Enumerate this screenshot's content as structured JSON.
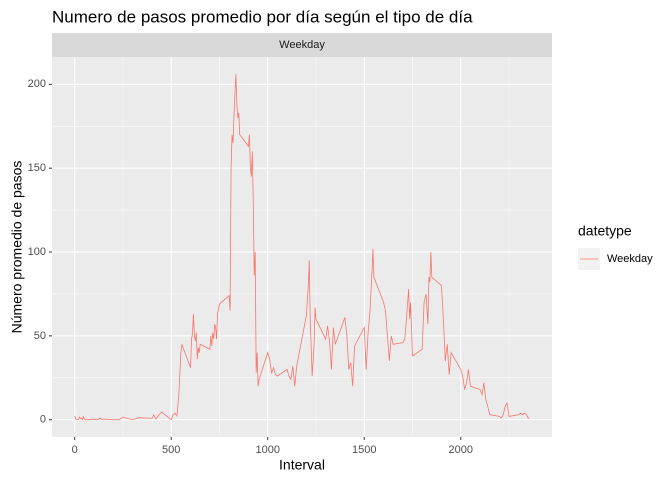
{
  "chart_data": {
    "type": "line",
    "title": "Numero de pasos promedio por día según el tipo de día",
    "facet_label": "Weekday",
    "xlabel": "Interval",
    "ylabel": "Número promedio de pasos",
    "legend_title": "datetype",
    "legend_position": "right",
    "grid": true,
    "x": [
      0,
      5,
      10,
      15,
      20,
      25,
      30,
      35,
      40,
      45,
      50,
      55,
      100,
      105,
      110,
      115,
      120,
      130,
      140,
      150,
      200,
      220,
      230,
      250,
      300,
      330,
      400,
      410,
      420,
      430,
      440,
      450,
      500,
      510,
      520,
      530,
      540,
      550,
      555,
      600,
      605,
      610,
      615,
      620,
      625,
      630,
      635,
      640,
      645,
      650,
      700,
      705,
      710,
      715,
      720,
      725,
      730,
      735,
      740,
      745,
      750,
      800,
      805,
      810,
      815,
      820,
      825,
      830,
      835,
      840,
      845,
      850,
      855,
      900,
      905,
      910,
      915,
      920,
      925,
      930,
      935,
      940,
      945,
      950,
      955,
      1000,
      1010,
      1020,
      1030,
      1040,
      1050,
      1100,
      1110,
      1120,
      1130,
      1140,
      1150,
      1200,
      1210,
      1215,
      1220,
      1230,
      1240,
      1245,
      1250,
      1300,
      1310,
      1320,
      1330,
      1340,
      1350,
      1400,
      1410,
      1420,
      1430,
      1440,
      1450,
      1500,
      1510,
      1520,
      1530,
      1540,
      1545,
      1550,
      1600,
      1610,
      1620,
      1630,
      1640,
      1650,
      1700,
      1710,
      1720,
      1730,
      1735,
      1740,
      1750,
      1800,
      1810,
      1820,
      1830,
      1835,
      1840,
      1845,
      1850,
      1900,
      1910,
      1920,
      1930,
      1940,
      1950,
      2000,
      2010,
      2020,
      2030,
      2040,
      2050,
      2100,
      2110,
      2120,
      2130,
      2140,
      2150,
      2200,
      2210,
      2220,
      2230,
      2240,
      2250,
      2300,
      2310,
      2320,
      2330,
      2340,
      2350,
      2355
    ],
    "series": [
      {
        "name": "Weekday",
        "color": "#F8766D",
        "values": [
          2.3,
          0.4,
          0.2,
          0.2,
          0.1,
          1.6,
          0.6,
          1,
          0,
          1.8,
          0.4,
          0,
          0.4,
          0,
          0.2,
          0.4,
          0,
          1.1,
          0.2,
          0.4,
          0,
          0,
          0,
          1.5,
          0,
          1.2,
          0.8,
          2.9,
          0.4,
          1.8,
          3.4,
          4.6,
          0,
          3,
          3.8,
          2.3,
          16,
          40,
          45,
          31,
          48,
          51,
          63,
          50,
          47,
          52,
          36,
          43,
          40,
          45,
          42,
          50,
          44,
          52,
          48,
          57,
          55,
          48,
          63,
          66,
          69,
          74,
          65,
          150,
          170,
          165,
          181,
          194,
          206,
          188,
          180,
          183,
          170,
          163,
          170,
          150,
          145,
          160,
          130,
          86,
          100,
          28,
          40,
          20,
          24,
          40,
          36,
          28,
          31,
          27,
          26,
          30,
          26,
          24,
          32,
          20,
          32,
          62,
          80,
          95,
          60,
          26,
          44,
          67,
          60,
          48,
          56,
          47,
          30,
          55,
          45,
          61,
          50,
          30,
          34,
          20,
          44,
          55,
          30,
          52,
          65,
          88,
          102,
          85,
          70,
          65,
          50,
          35,
          50,
          45,
          46,
          48,
          62,
          78,
          60,
          70,
          38,
          42,
          70,
          75,
          57,
          85,
          82,
          100,
          85,
          80,
          60,
          35,
          45,
          27,
          40,
          30,
          26,
          18,
          22,
          30,
          20,
          18,
          15,
          22,
          12,
          8,
          3,
          2,
          1,
          3,
          8,
          10,
          2,
          3,
          4,
          3,
          4,
          3,
          1,
          1
        ]
      }
    ],
    "xlim": [
      -117.75,
      2472.75
    ],
    "ylim": [
      -10.3,
      216.3
    ],
    "xticks": [
      0,
      500,
      1000,
      1500,
      2000
    ],
    "yticks": [
      0,
      50,
      100,
      150,
      200
    ]
  }
}
